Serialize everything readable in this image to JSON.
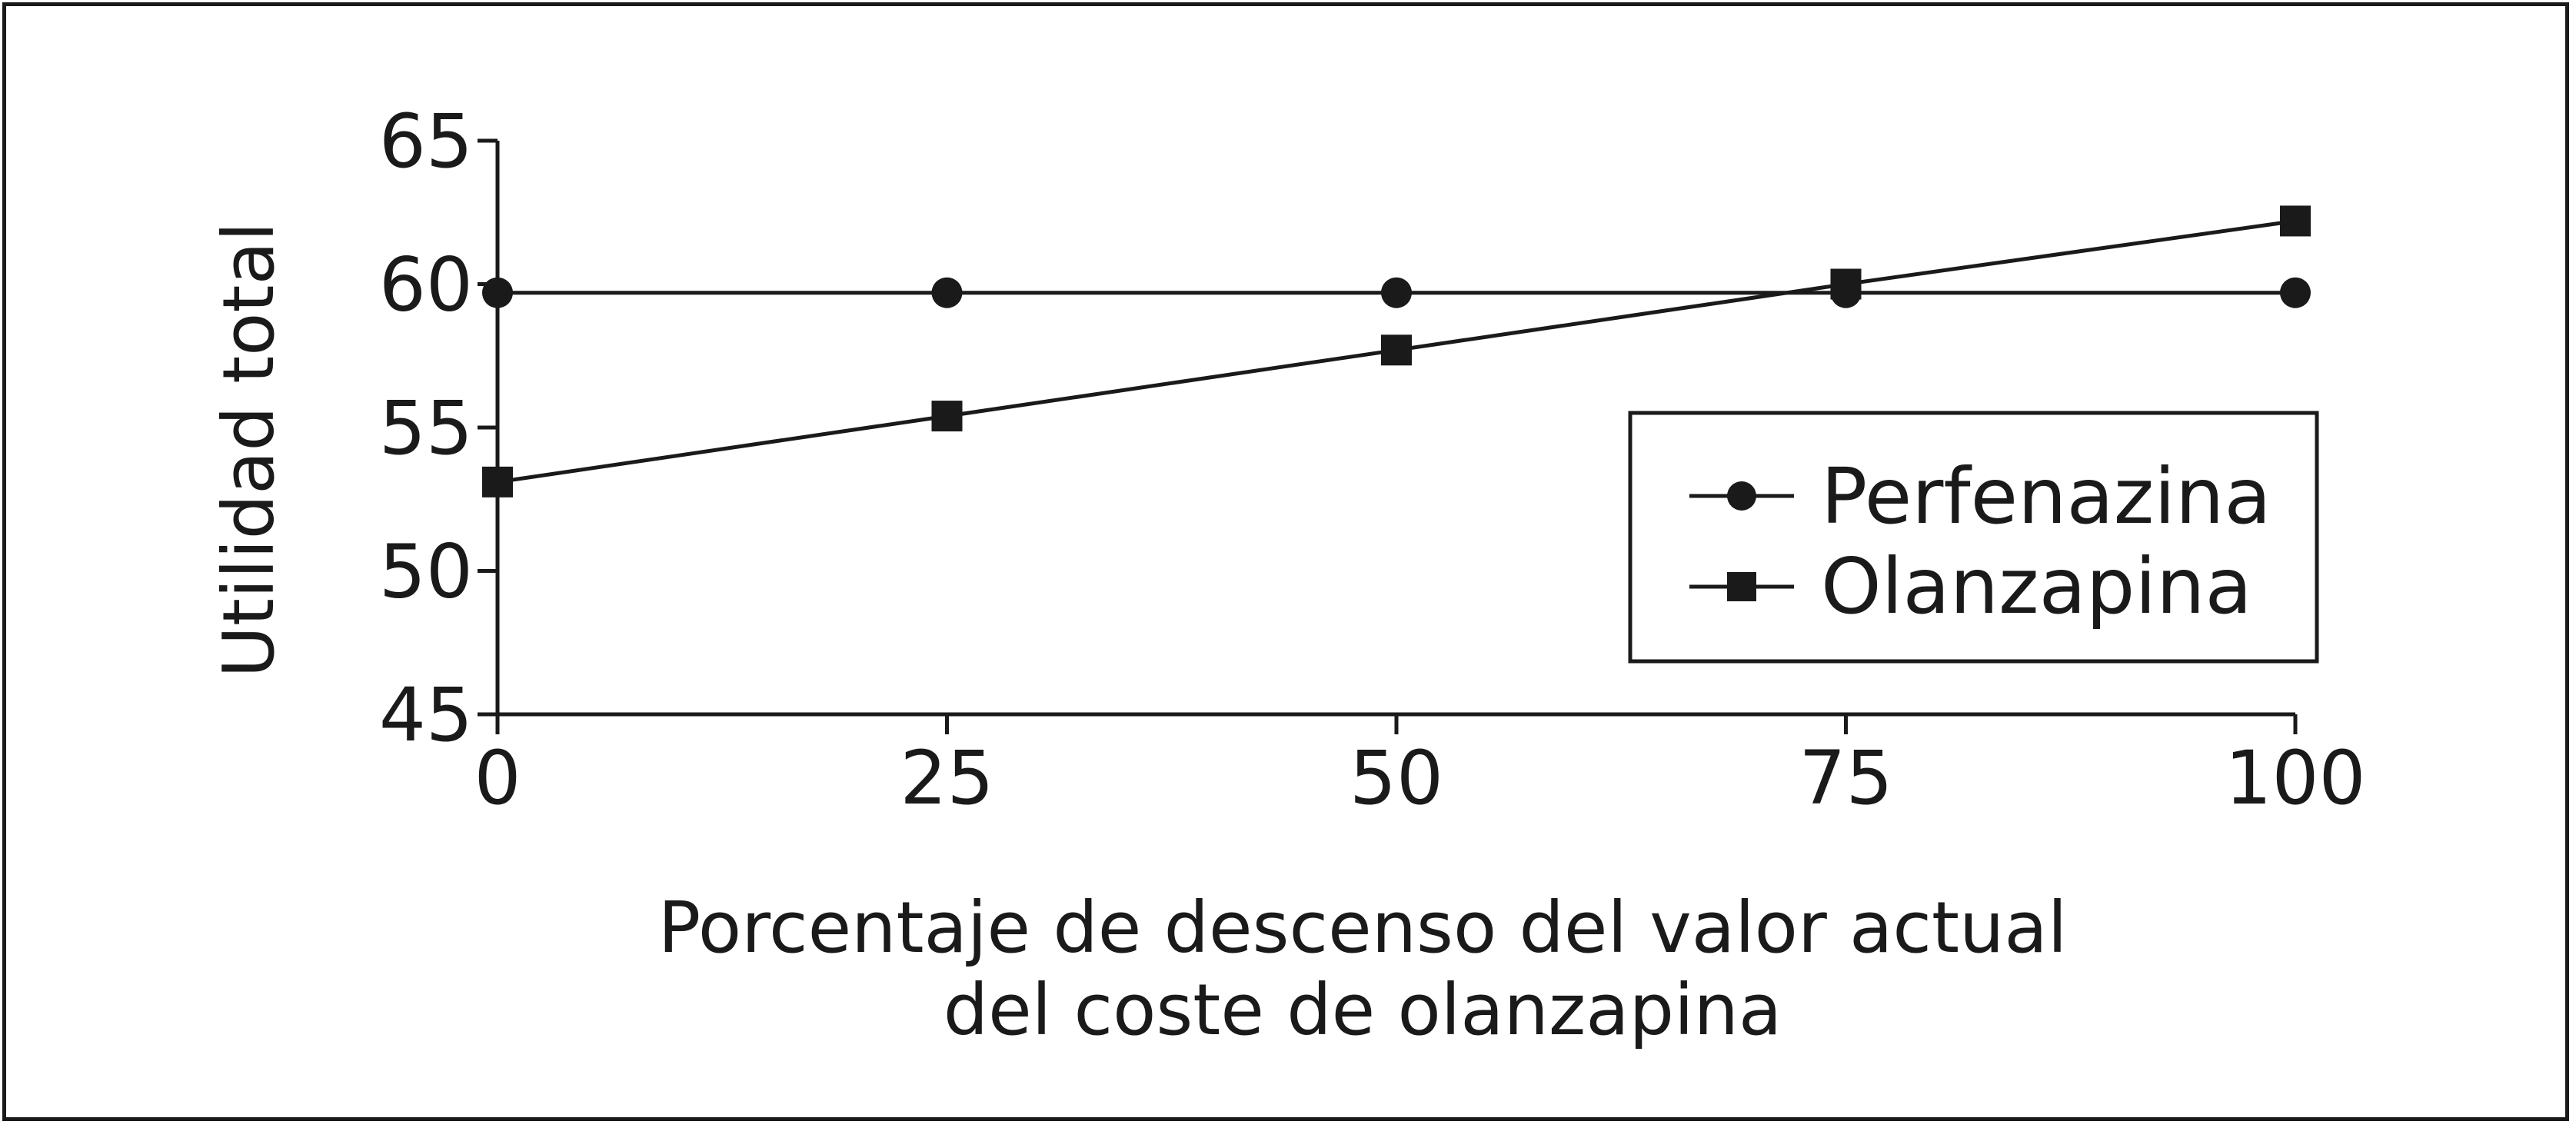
{
  "chart_data": {
    "type": "line",
    "x": [
      0,
      25,
      50,
      75,
      100
    ],
    "xticks": [
      "0",
      "25",
      "50",
      "75",
      "100"
    ],
    "yticks": [
      "45",
      "50",
      "55",
      "60",
      "65"
    ],
    "xlim": [
      0,
      100
    ],
    "ylim": [
      45,
      65
    ],
    "ylabel": "Utilidad total",
    "xlabel_lines": [
      "Porcentaje de descenso del valor actual",
      "del coste de olanzapina"
    ],
    "grid": false,
    "legend_position": "right",
    "series": [
      {
        "name": "Perfenazina",
        "marker": "circle",
        "color": "#1a1a1a",
        "values": [
          59.7,
          59.7,
          59.7,
          59.7,
          59.7
        ]
      },
      {
        "name": "Olanzapina",
        "marker": "square",
        "color": "#1a1a1a",
        "values": [
          53.1,
          55.4,
          57.7,
          60.0,
          62.2
        ]
      }
    ]
  }
}
